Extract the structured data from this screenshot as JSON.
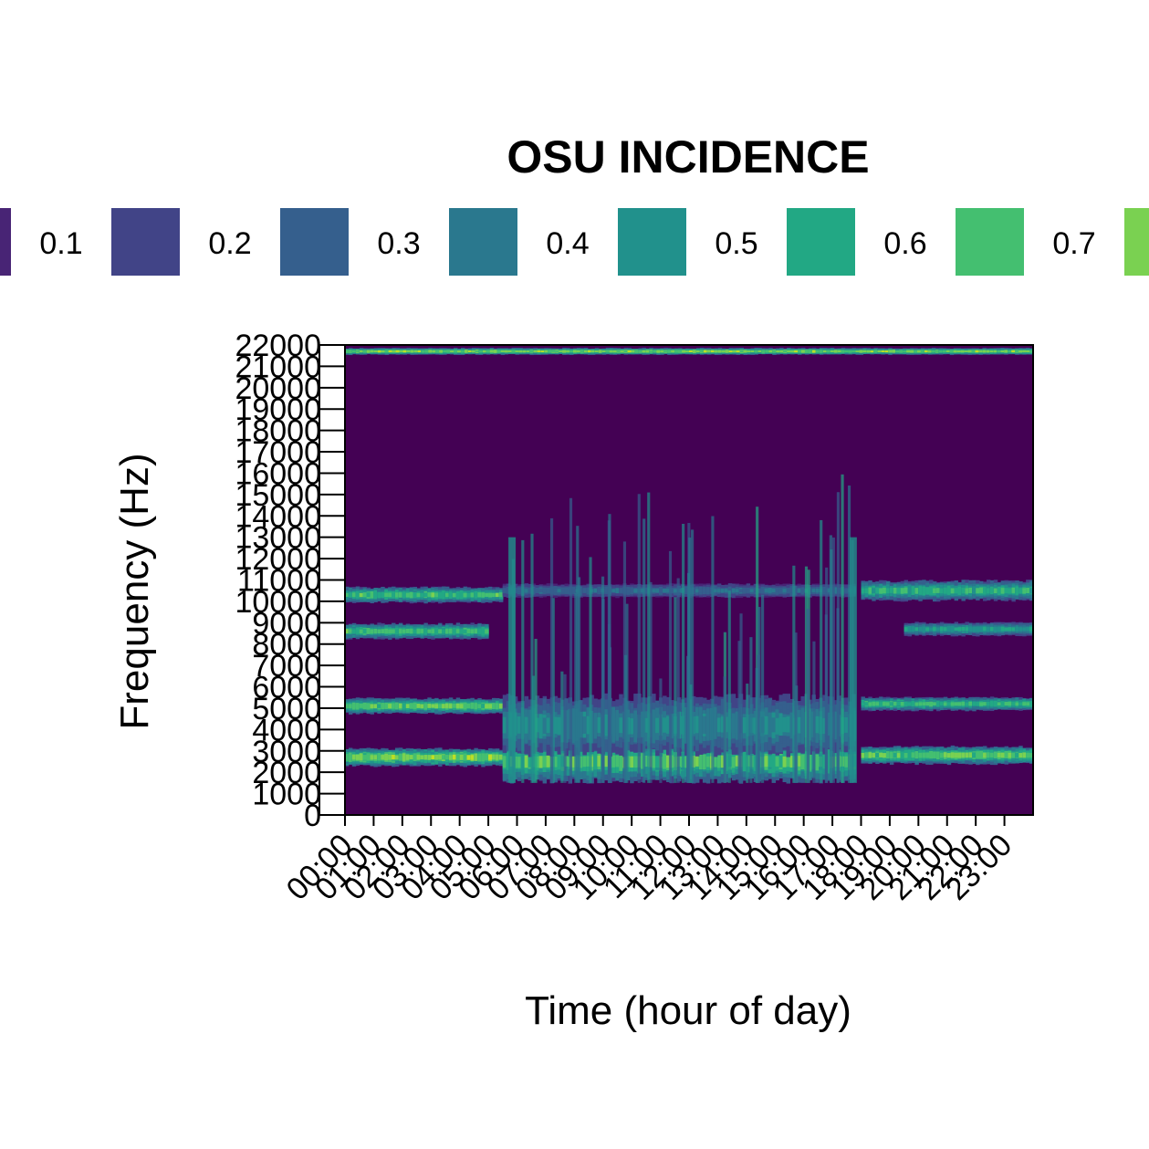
{
  "chart_data": {
    "type": "heatmap",
    "legend": {
      "title": "OSU INCIDENCE",
      "placement": "top",
      "labels": [
        "0.1",
        "0.2",
        "0.3",
        "0.4",
        "0.5",
        "0.6",
        "0.7"
      ],
      "colors": [
        "#482475",
        "#414487",
        "#355f8d",
        "#2a788e",
        "#21918c",
        "#22a884",
        "#44bf70",
        "#7ad151"
      ]
    },
    "xlabel": "Time (hour of day)",
    "ylabel": "Frequency (Hz)",
    "xlim": [
      0,
      24
    ],
    "ylim": [
      0,
      22000
    ],
    "x_ticks": [
      "00:00",
      "01:00",
      "02:00",
      "03:00",
      "04:00",
      "05:00",
      "06:00",
      "07:00",
      "08:00",
      "09:00",
      "10:00",
      "11:00",
      "12:00",
      "13:00",
      "14:00",
      "15:00",
      "16:00",
      "17:00",
      "18:00",
      "19:00",
      "20:00",
      "21:00",
      "22:00",
      "23:00"
    ],
    "y_ticks": [
      "0",
      "1000",
      "2000",
      "3000",
      "4000",
      "5000",
      "6000",
      "7000",
      "8000",
      "9000",
      "10000",
      "11000",
      "12000",
      "13000",
      "14000",
      "15000",
      "16000",
      "17000",
      "18000",
      "19000",
      "20000",
      "21000",
      "22000"
    ],
    "colorscale": [
      "#440154",
      "#482475",
      "#414487",
      "#355f8d",
      "#2a788e",
      "#21918c",
      "#22a884",
      "#44bf70",
      "#7ad151",
      "#bddf26",
      "#fde725"
    ],
    "bands": [
      {
        "hours": [
          0,
          5.5
        ],
        "freq_center": 2700,
        "freq_width": 800,
        "intensity": 1.0
      },
      {
        "hours": [
          0,
          5.5
        ],
        "freq_center": 5100,
        "freq_width": 700,
        "intensity": 0.95
      },
      {
        "hours": [
          0,
          5.0
        ],
        "freq_center": 8600,
        "freq_width": 700,
        "intensity": 0.85
      },
      {
        "hours": [
          0,
          5.5
        ],
        "freq_center": 10300,
        "freq_width": 700,
        "intensity": 0.85
      },
      {
        "hours": [
          5.5,
          17.8
        ],
        "freq_center": 2500,
        "freq_width": 1800,
        "intensity": 0.9
      },
      {
        "hours": [
          5.5,
          17.8
        ],
        "freq_center": 4200,
        "freq_width": 2600,
        "intensity": 0.6
      },
      {
        "hours": [
          5.5,
          17.8
        ],
        "freq_center": 10500,
        "freq_width": 600,
        "intensity": 0.45
      },
      {
        "hours": [
          18.0,
          24
        ],
        "freq_center": 2800,
        "freq_width": 800,
        "intensity": 0.95
      },
      {
        "hours": [
          18.0,
          24
        ],
        "freq_center": 5200,
        "freq_width": 600,
        "intensity": 0.85
      },
      {
        "hours": [
          19.5,
          24
        ],
        "freq_center": 8700,
        "freq_width": 600,
        "intensity": 0.7
      },
      {
        "hours": [
          18.0,
          24
        ],
        "freq_center": 10500,
        "freq_width": 900,
        "intensity": 0.8
      },
      {
        "hours": [
          0,
          24
        ],
        "freq_center": 21700,
        "freq_width": 300,
        "intensity": 1.0
      }
    ]
  }
}
